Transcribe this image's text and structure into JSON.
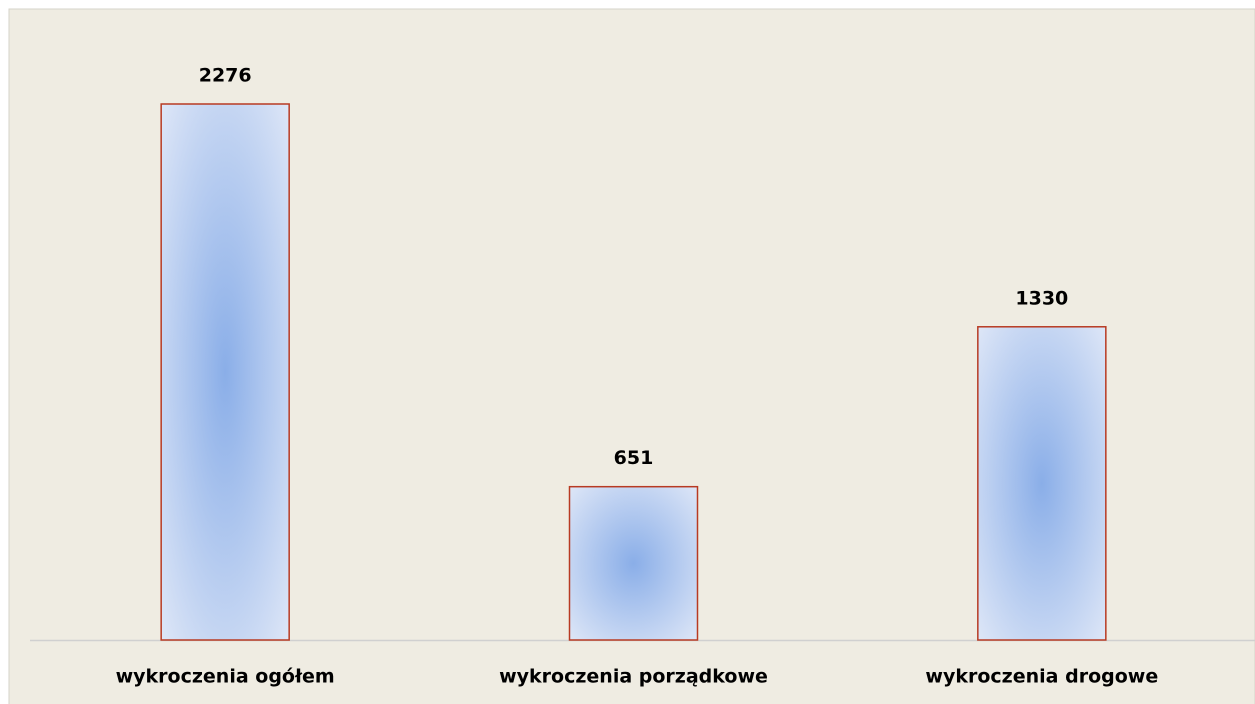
{
  "chart_data": {
    "type": "bar",
    "categories": [
      "wykroczenia ogółem",
      "wykroczenia porządkowe",
      "wykroczenia drogowe"
    ],
    "values": [
      2276,
      651,
      1330
    ],
    "color": "#8aaee8",
    "edge_color": "#b83a22"
  }
}
